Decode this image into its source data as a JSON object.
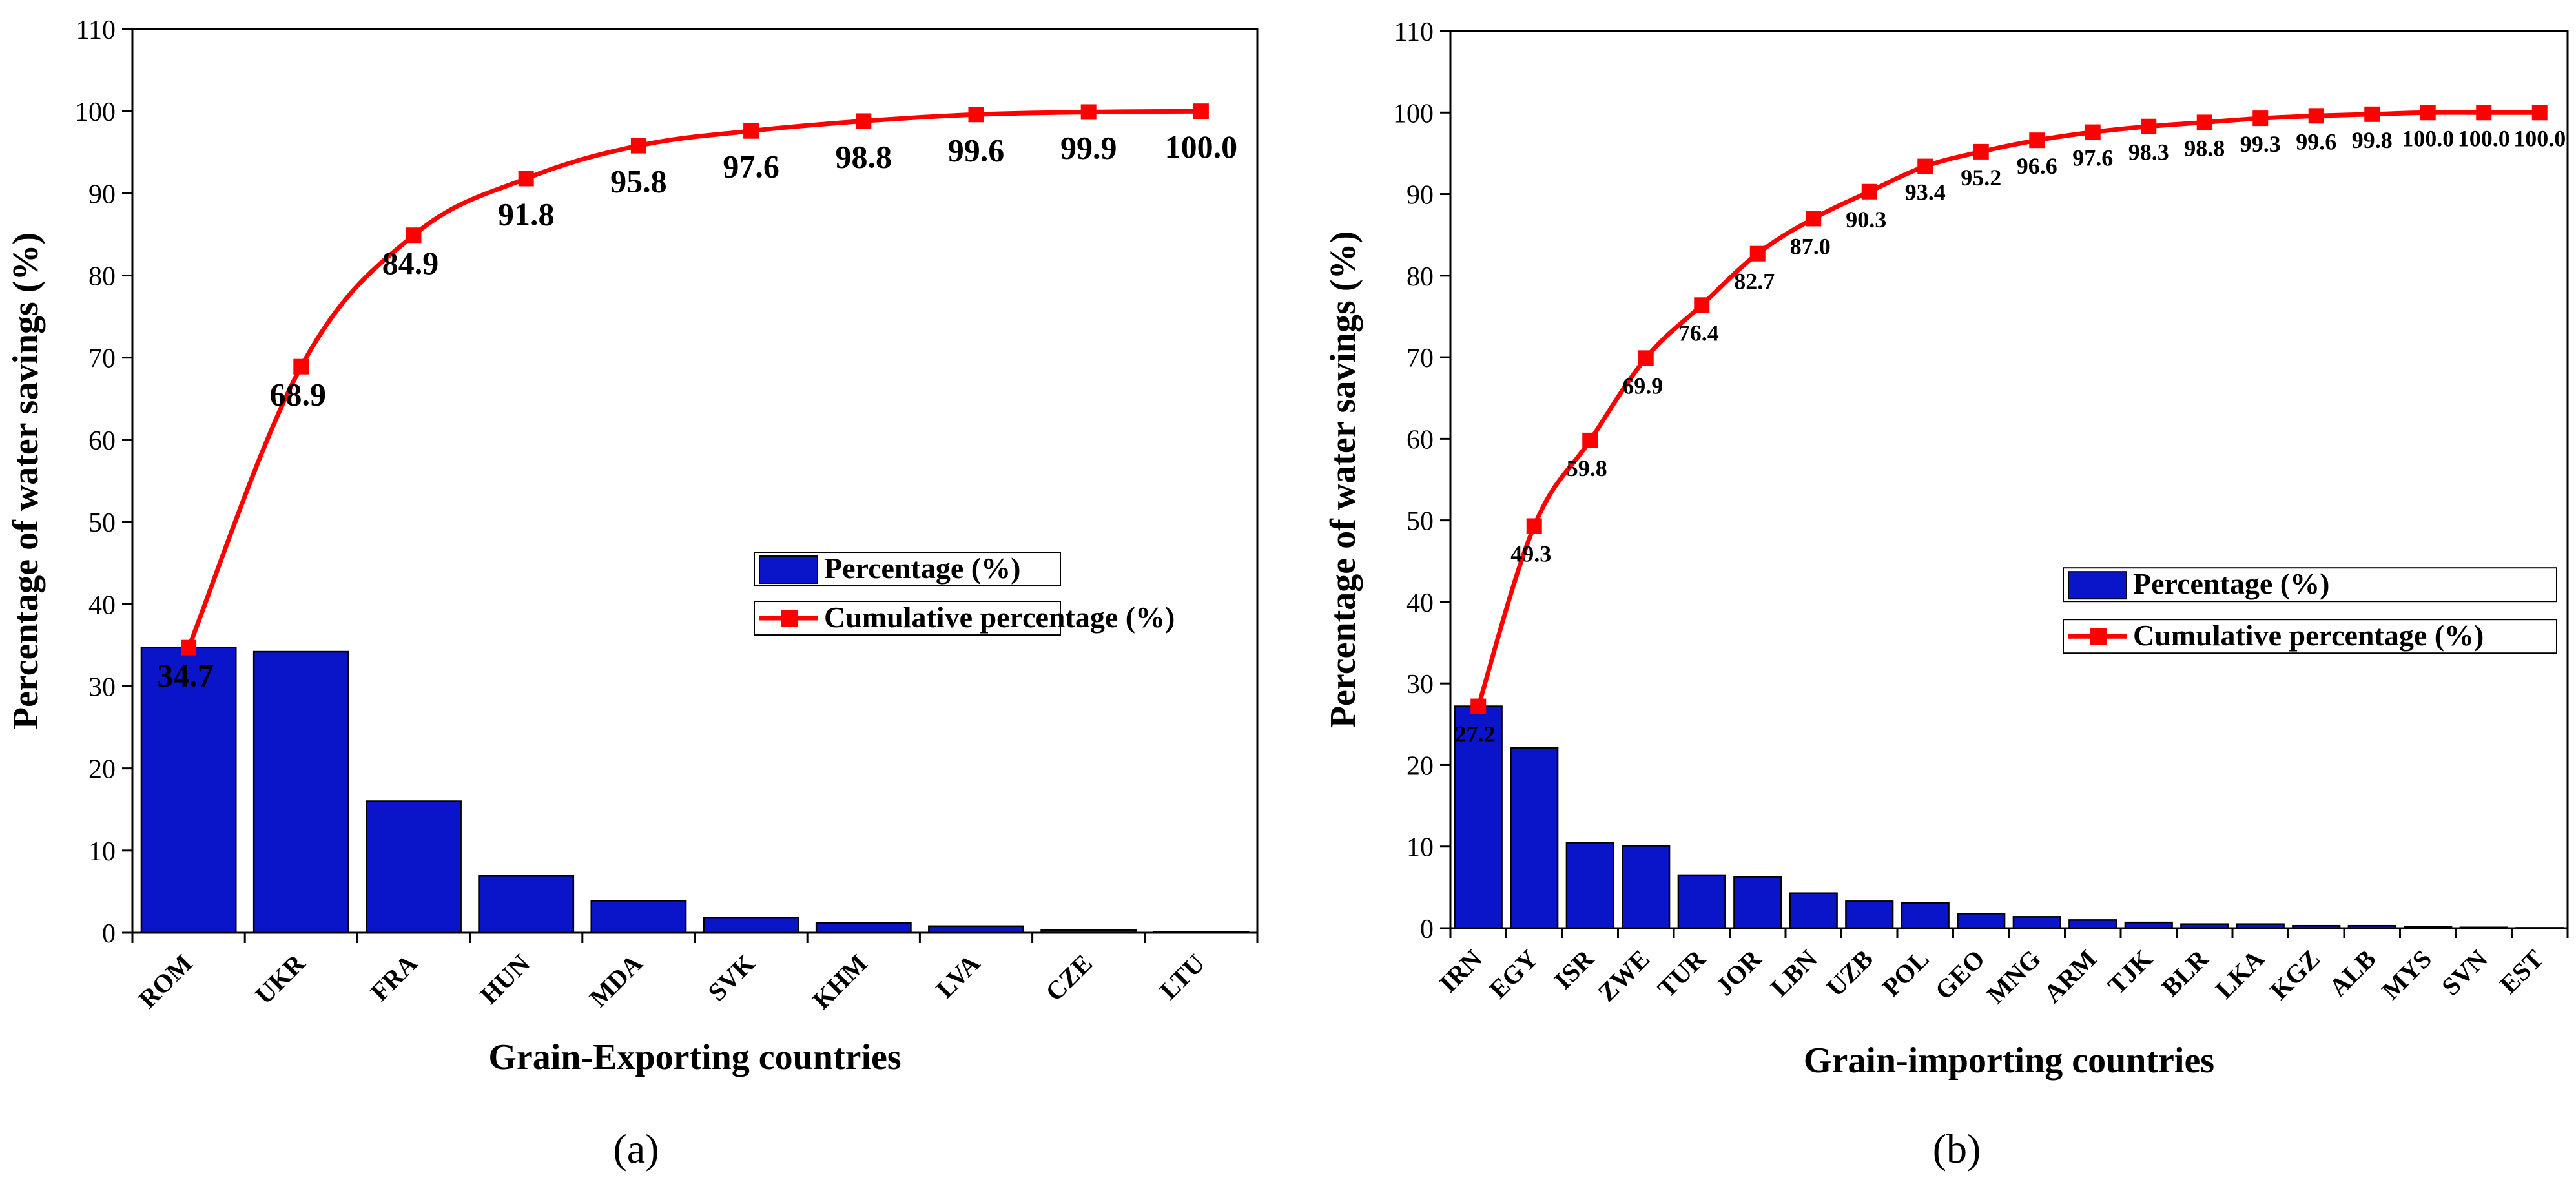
{
  "chart_data": [
    {
      "panel_label": "(a)",
      "type": "bar",
      "title": "",
      "xlabel": "Grain-Exporting countries",
      "ylabel": "Percentage of water savings (%)",
      "ylim": [
        0,
        110
      ],
      "yticks": [
        0,
        10,
        20,
        30,
        40,
        50,
        60,
        70,
        80,
        90,
        100,
        110
      ],
      "categories": [
        "ROM",
        "UKR",
        "FRA",
        "HUN",
        "MDA",
        "SVK",
        "KHM",
        "LVA",
        "CZE",
        "LTU"
      ],
      "series": [
        {
          "name": "Percentage (%)",
          "type": "bar",
          "color": "#0a14c8",
          "values": [
            34.7,
            34.2,
            16.0,
            6.9,
            3.9,
            1.8,
            1.2,
            0.8,
            0.3,
            0.1
          ]
        },
        {
          "name": "Cumulative percentage (%)",
          "type": "line",
          "color": "#ff0000",
          "values": [
            34.7,
            68.9,
            84.9,
            91.8,
            95.8,
            97.6,
            98.8,
            99.6,
            99.9,
            100.0
          ],
          "labels": [
            "34.7",
            "68.9",
            "84.9",
            "91.8",
            "95.8",
            "97.6",
            "98.8",
            "99.6",
            "99.9",
            "100.0"
          ]
        }
      ],
      "legend": [
        "Percentage (%)",
        "Cumulative percentage (%)"
      ],
      "legend_position": "center-right"
    },
    {
      "panel_label": "(b)",
      "type": "bar",
      "title": "",
      "xlabel": "Grain-importing countries",
      "ylabel": "Percentage of water savings (%)",
      "ylim": [
        0,
        110
      ],
      "yticks": [
        0,
        10,
        20,
        30,
        40,
        50,
        60,
        70,
        80,
        90,
        100,
        110
      ],
      "categories": [
        "IRN",
        "EGY",
        "ISR",
        "ZWE",
        "TUR",
        "JOR",
        "LBN",
        "UZB",
        "POL",
        "GEO",
        "MNG",
        "ARM",
        "TJK",
        "BLR",
        "LKA",
        "KGZ",
        "ALB",
        "MYS",
        "SVN",
        "EST"
      ],
      "series": [
        {
          "name": "Percentage (%)",
          "type": "bar",
          "color": "#0a14c8",
          "values": [
            27.2,
            22.1,
            10.5,
            10.1,
            6.5,
            6.3,
            4.3,
            3.3,
            3.1,
            1.8,
            1.4,
            1.0,
            0.7,
            0.5,
            0.5,
            0.3,
            0.3,
            0.2,
            0.1,
            0.05
          ]
        },
        {
          "name": "Cumulative percentage (%)",
          "type": "line",
          "color": "#ff0000",
          "values": [
            27.2,
            49.3,
            59.8,
            69.9,
            76.4,
            82.7,
            87.0,
            90.3,
            93.4,
            95.2,
            96.6,
            97.6,
            98.3,
            98.8,
            99.3,
            99.6,
            99.8,
            100.0,
            100.0,
            100.0
          ],
          "labels": [
            "27.2",
            "49.3",
            "59.8",
            "69.9",
            "76.4",
            "82.7",
            "87.0",
            "90.3",
            "93.4",
            "95.2",
            "96.6",
            "97.6",
            "98.3",
            "98.8",
            "99.3",
            "99.6",
            "99.8",
            "100.0",
            "100.0",
            "100.0"
          ]
        }
      ],
      "legend": [
        "Percentage (%)",
        "Cumulative percentage (%)"
      ],
      "legend_position": "center-right"
    }
  ]
}
